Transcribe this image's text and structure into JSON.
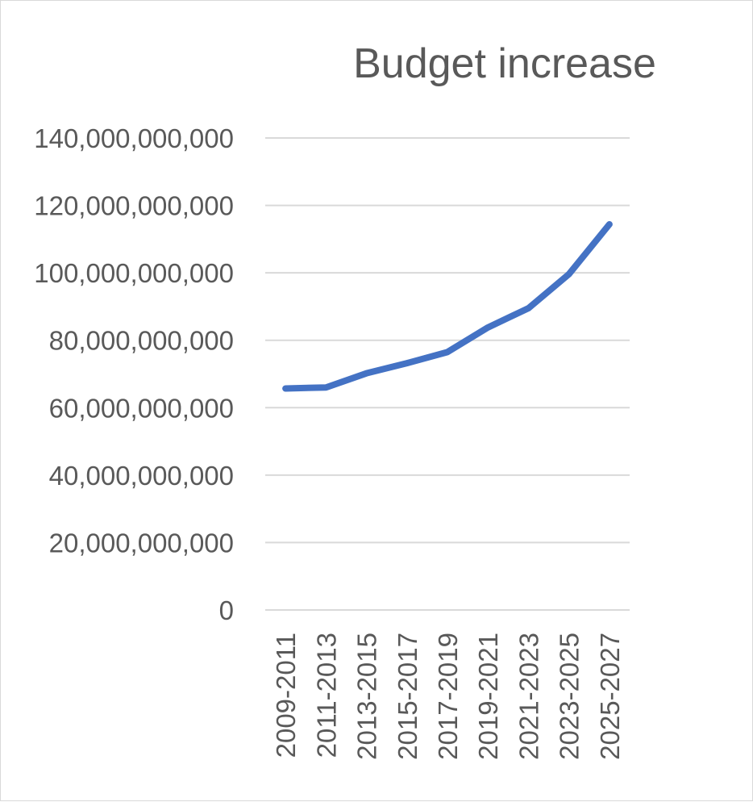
{
  "chart_data": {
    "type": "line",
    "title": "Budget increase",
    "xlabel": "",
    "ylabel": "",
    "categories": [
      "2009-2011",
      "2011-2013",
      "2013-2015",
      "2015-2017",
      "2017-2019",
      "2019-2021",
      "2021-2023",
      "2023-2025",
      "2025-2027"
    ],
    "series": [
      {
        "values": [
          65700000000,
          66000000000,
          70200000000,
          73200000000,
          76500000000,
          83800000000,
          89500000000,
          99600000000,
          114400000000
        ],
        "color": "#4472c4"
      }
    ],
    "ylim": [
      0,
      140000000000
    ],
    "ytick_labels": [
      "0",
      "20,000,000,000",
      "40,000,000,000",
      "60,000,000,000",
      "80,000,000,000",
      "100,000,000,000",
      "120,000,000,000",
      "140,000,000,000"
    ],
    "grid": true,
    "legend": "none"
  }
}
